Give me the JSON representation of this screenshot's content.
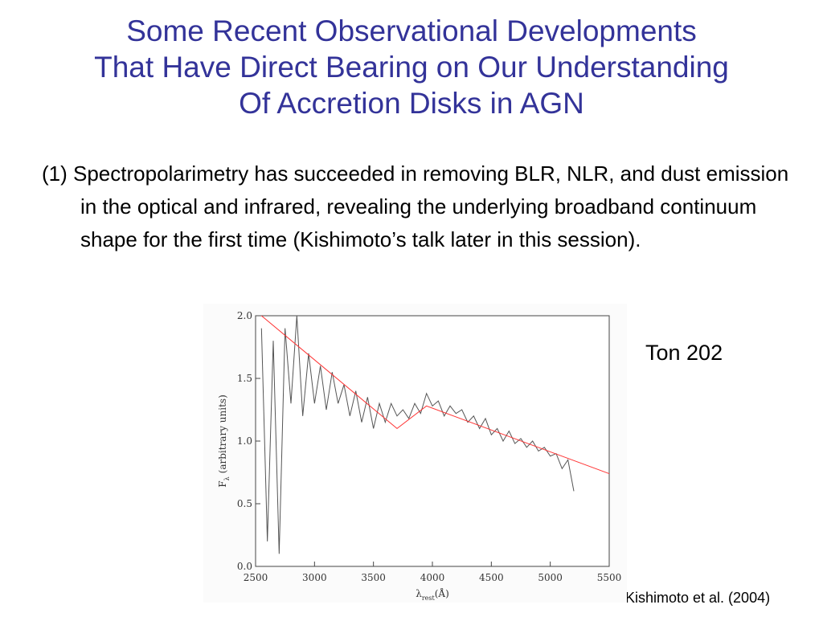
{
  "slide": {
    "title": [
      "Some Recent Observational Developments",
      "That Have Direct Bearing on Our Understanding",
      "Of Accretion Disks in AGN"
    ],
    "bullet": "(1) Spectropolarimetry has succeeded in removing BLR, NLR, and dust emission in the optical and infrared, revealing the underlying broadband continuum shape for the first time (Kishimoto’s talk later in this session).",
    "caption": "Ton 202",
    "credit": "-Kishimoto et al. (2004)"
  },
  "chart_data": {
    "type": "line",
    "xlabel": {
      "symbol": "λ",
      "subscript": "rest",
      "unit": "(Å)"
    },
    "ylabel": {
      "symbol": "F",
      "subscript": "λ",
      "unit": "(arbitrary units)"
    },
    "xlim": [
      2500,
      5500
    ],
    "xticks": [
      2500,
      3000,
      3500,
      4000,
      4500,
      5000,
      5500
    ],
    "ylim": [
      0,
      2
    ],
    "yticks": [
      {
        "value": 0,
        "label": "0.0"
      },
      {
        "value": 0.5,
        "label": "0.5"
      },
      {
        "value": 1,
        "label": "1.0"
      },
      {
        "value": 1.5,
        "label": "1.5"
      },
      {
        "value": 2,
        "label": "2.0"
      }
    ],
    "series": [
      {
        "color": "#555555",
        "x": [
          2550,
          2600,
          2650,
          2700,
          2750,
          2800,
          2850,
          2900,
          2950,
          3000,
          3050,
          3100,
          3150,
          3200,
          3250,
          3300,
          3350,
          3400,
          3450,
          3500,
          3550,
          3600,
          3650,
          3700,
          3750,
          3800,
          3850,
          3900,
          3950,
          4000,
          4050,
          4100,
          4150,
          4200,
          4250,
          4300,
          4350,
          4400,
          4450,
          4500,
          4550,
          4600,
          4650,
          4700,
          4750,
          4800,
          4850,
          4900,
          4950,
          5000,
          5050,
          5100,
          5150,
          5200
        ],
        "values": [
          1.9,
          0.2,
          1.8,
          0.1,
          1.9,
          1.3,
          2.0,
          1.2,
          1.7,
          1.3,
          1.6,
          1.25,
          1.55,
          1.3,
          1.45,
          1.2,
          1.4,
          1.15,
          1.35,
          1.1,
          1.3,
          1.15,
          1.3,
          1.2,
          1.25,
          1.18,
          1.3,
          1.22,
          1.38,
          1.28,
          1.32,
          1.2,
          1.28,
          1.22,
          1.25,
          1.15,
          1.2,
          1.1,
          1.18,
          1.05,
          1.1,
          1.0,
          1.08,
          0.98,
          1.02,
          0.95,
          1.0,
          0.92,
          0.95,
          0.88,
          0.9,
          0.78,
          0.85,
          0.6
        ]
      },
      {
        "color": "#ff3333",
        "x": [
          2550,
          3700,
          3950,
          5500
        ],
        "values": [
          2.0,
          1.1,
          1.28,
          0.74
        ]
      }
    ]
  }
}
